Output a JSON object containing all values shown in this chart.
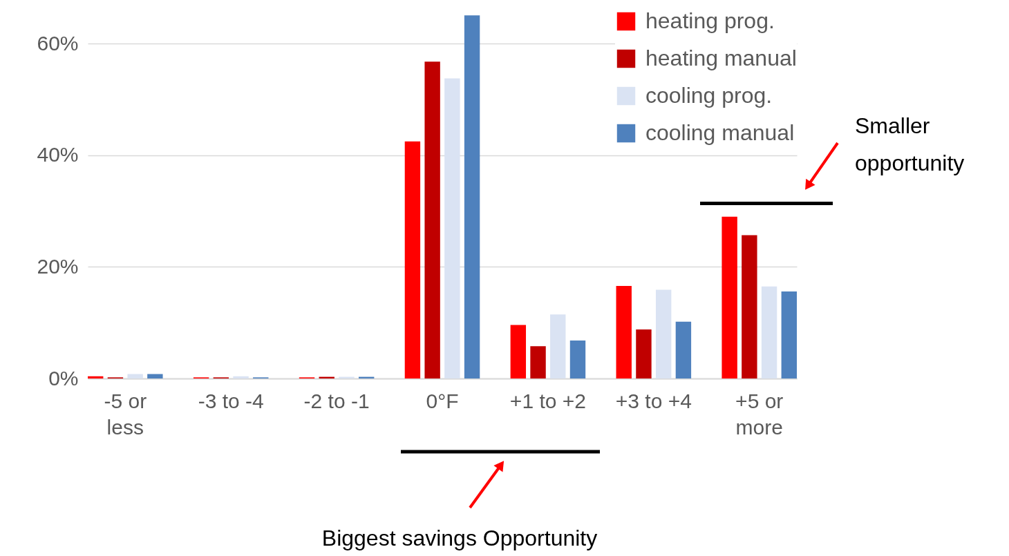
{
  "chart_data": {
    "type": "bar",
    "categories": [
      "-5 or less",
      "-3 to -4",
      "-2 to -1",
      "0°F",
      "+1 to +2",
      "+3 to +4",
      "+5 or more"
    ],
    "series": [
      {
        "name": "heating prog.",
        "color": "#ff0000",
        "values": [
          0.4,
          0.2,
          0.2,
          42.5,
          9.6,
          16.6,
          29.0
        ]
      },
      {
        "name": "heating manual",
        "color": "#c00000",
        "values": [
          0.2,
          0.2,
          0.3,
          56.8,
          5.8,
          8.8,
          25.7
        ]
      },
      {
        "name": "cooling prog.",
        "color": "#dae3f3",
        "values": [
          0.8,
          0.4,
          0.3,
          53.8,
          11.5,
          15.9,
          16.5
        ]
      },
      {
        "name": "cooling manual",
        "color": "#4f81bd",
        "values": [
          0.8,
          0.2,
          0.3,
          65.1,
          6.8,
          10.2,
          15.6
        ]
      }
    ],
    "ylim": [
      0,
      66
    ],
    "yticks": [
      {
        "value": 0,
        "label": "0%"
      },
      {
        "value": 20,
        "label": "20%"
      },
      {
        "value": 40,
        "label": "40%"
      },
      {
        "value": 60,
        "label": "60%"
      }
    ],
    "grid": "y",
    "legend": "top right",
    "annotations": [
      "Biggest savings Opportunity"
    ],
    "ref_lines": [
      {
        "axis": "y",
        "value": 31.4,
        "label": "Smaller opportunity",
        "color": "#000000"
      }
    ]
  }
}
